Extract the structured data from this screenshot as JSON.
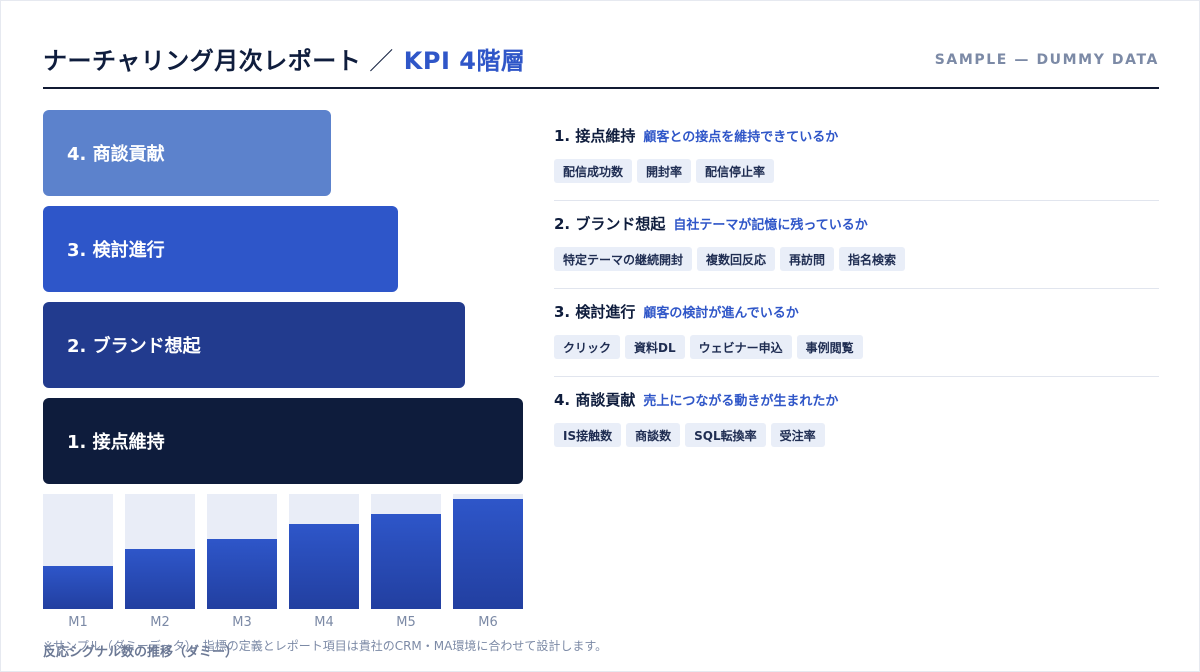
{
  "header": {
    "title": "ナーチャリング月次レポート",
    "separator": "／",
    "title_accent": "KPI 4階層",
    "sample_label": "SAMPLE — DUMMY DATA"
  },
  "tiers": [
    {
      "label": "4. 商談貢献"
    },
    {
      "label": "3. 検討進行"
    },
    {
      "label": "2. ブランド想起"
    },
    {
      "label": "1. 接点維持"
    }
  ],
  "sections": [
    {
      "title": "1. 接点維持",
      "desc": "顧客との接点を維持できているか",
      "chips": [
        "配信成功数",
        "開封率",
        "配信停止率"
      ]
    },
    {
      "title": "2. ブランド想起",
      "desc": "自社テーマが記憶に残っているか",
      "chips": [
        "特定テーマの継続開封",
        "複数回反応",
        "再訪問",
        "指名検索"
      ]
    },
    {
      "title": "3. 検討進行",
      "desc": "顧客の検討が進んでいるか",
      "chips": [
        "クリック",
        "資料DL",
        "ウェビナー申込",
        "事例閲覧"
      ]
    },
    {
      "title": "4. 商談貢献",
      "desc": "売上につながる動きが生まれたか",
      "chips": [
        "IS接触数",
        "商談数",
        "SQL転換率",
        "受注率"
      ]
    }
  ],
  "chart_data": {
    "type": "bar",
    "categories": [
      "M1",
      "M2",
      "M3",
      "M4",
      "M5",
      "M6"
    ],
    "values": [
      37,
      52,
      61,
      74,
      83,
      96
    ],
    "ylim": [
      0,
      100
    ],
    "title": "反応シグナル数の推移（ダミー）",
    "grid": false
  },
  "footnote": "※サンプル（ダミーデータ）。指標の定義とレポート項目は貴社のCRM・MA環境に合わせて設計します。",
  "colors": {
    "navy": "#0e1c3c",
    "blue_dark": "#223b8e",
    "blue": "#2e56c9",
    "blue_light": "#5c82cc",
    "chip_bg": "#e9eef8",
    "muted": "#7c8aa6"
  }
}
